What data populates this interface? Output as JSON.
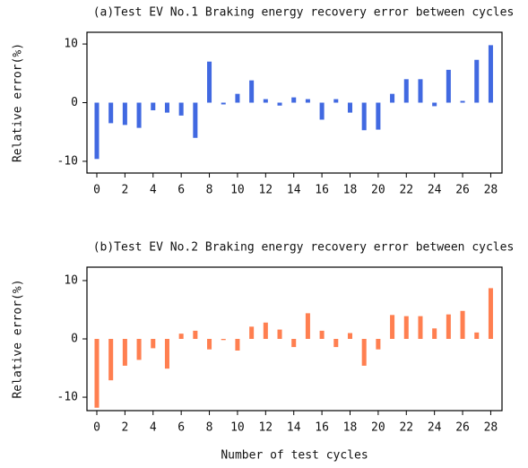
{
  "chart_data": [
    {
      "type": "bar",
      "title": "(a)Test EV No.1 Braking energy recovery error between cycles",
      "ylabel": "Relative error(%)",
      "x": [
        0,
        1,
        2,
        3,
        4,
        5,
        6,
        7,
        8,
        9,
        10,
        11,
        12,
        13,
        14,
        15,
        16,
        17,
        18,
        19,
        20,
        21,
        22,
        23,
        24,
        25,
        26,
        27,
        28
      ],
      "values": [
        -9.6,
        -3.5,
        -3.8,
        -4.3,
        -1.3,
        -1.7,
        -2.2,
        -6.0,
        7.0,
        -0.3,
        1.5,
        3.8,
        0.6,
        -0.5,
        0.9,
        0.6,
        -2.9,
        0.6,
        -1.7,
        -4.7,
        -4.6,
        1.5,
        4.0,
        4.0,
        -0.6,
        5.6,
        0.3,
        7.3,
        9.8
      ],
      "color": "#4169e1",
      "xlim": [
        -0.7,
        28.8
      ],
      "ylim": [
        -12,
        12
      ],
      "xticks": [
        0,
        2,
        4,
        6,
        8,
        10,
        12,
        14,
        16,
        18,
        20,
        22,
        24,
        26,
        28
      ],
      "yticks": [
        -10,
        0,
        10
      ]
    },
    {
      "type": "bar",
      "title": "(b)Test EV No.2 Braking energy recovery error between cycles",
      "ylabel": "Relative error(%)",
      "xlabel": "Number of test cycles",
      "x": [
        0,
        1,
        2,
        3,
        4,
        5,
        6,
        7,
        8,
        9,
        10,
        11,
        12,
        13,
        14,
        15,
        16,
        17,
        18,
        19,
        20,
        21,
        22,
        23,
        24,
        25,
        26,
        27,
        28
      ],
      "values": [
        -11.8,
        -7.1,
        -4.6,
        -3.6,
        -1.6,
        -5.1,
        0.9,
        1.4,
        -1.8,
        -0.2,
        -2.0,
        2.1,
        2.8,
        1.6,
        -1.4,
        4.4,
        1.4,
        -1.4,
        1.0,
        -4.6,
        -1.8,
        4.1,
        3.9,
        3.9,
        1.8,
        4.2,
        4.8,
        1.1,
        8.7
      ],
      "color": "#ff7f50",
      "xlim": [
        -0.7,
        28.8
      ],
      "ylim": [
        -12.3,
        12.3
      ],
      "xticks": [
        0,
        2,
        4,
        6,
        8,
        10,
        12,
        14,
        16,
        18,
        20,
        22,
        24,
        26,
        28
      ],
      "yticks": [
        -10,
        0,
        10
      ]
    }
  ]
}
